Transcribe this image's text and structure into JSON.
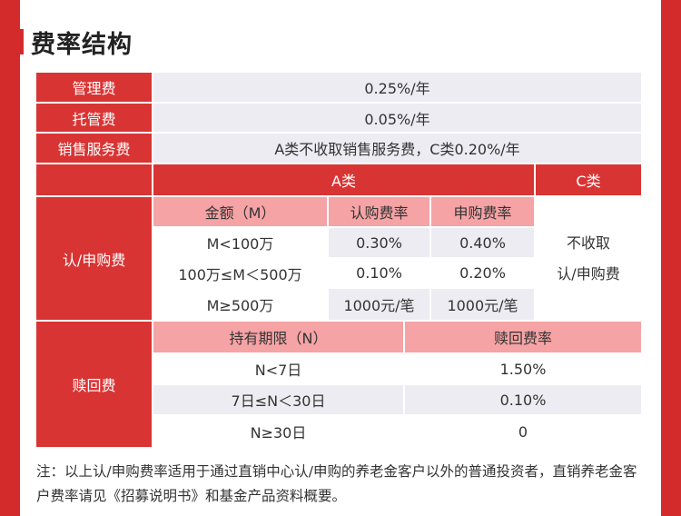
{
  "title": "费率结构",
  "rows": [
    {
      "label": "管理费",
      "value": "0.25%/年"
    },
    {
      "label": "托管费",
      "value": "0.05%/年"
    },
    {
      "label": "销售服务费",
      "value": "A类不收取销售服务费，C类0.20%/年"
    }
  ],
  "subscription": {
    "label": "认/申购费",
    "class_a_header": "A类",
    "class_c_header": "C类",
    "columns": [
      "金额（M）",
      "认购费率",
      "申购费率"
    ],
    "data": [
      [
        "M<100万",
        "0.30%",
        "0.40%"
      ],
      [
        "100万≤M＜500万",
        "0.10%",
        "0.20%"
      ],
      [
        "M≥500万",
        "1000元/笔",
        "1000元/笔"
      ]
    ],
    "class_c_text_line1": "不收取",
    "class_c_text_line2": "认/申购费"
  },
  "redemption": {
    "label": "赎回费",
    "columns": [
      "持有期限（N）",
      "赎回费率"
    ],
    "data": [
      [
        "N<7日",
        "1.50%"
      ],
      [
        "7日≤N＜30日",
        "0.10%"
      ],
      [
        "N≥30日",
        "0"
      ]
    ]
  },
  "note": "注：以上认/申购费率适用于通过直销中心认/申购的养老金客户以外的普通投资者，直销养老金客户费率请见《招募说明书》和基金产品资料概要。"
}
